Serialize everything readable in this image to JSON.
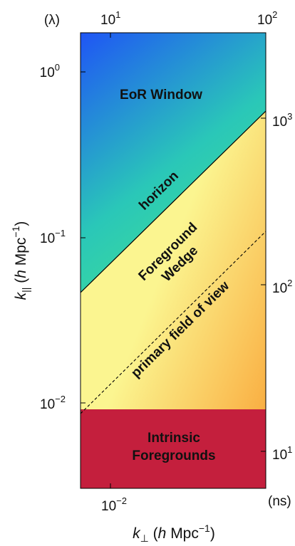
{
  "chart_data": {
    "type": "diagram",
    "x_axis": {
      "label": {
        "main": "k",
        "sub": "⊥",
        "rest": " (",
        "h": "h",
        "unit": " Mpc",
        "sup": "−1",
        "close": ")"
      },
      "scale": "log",
      "ticks": [
        {
          "base": "10",
          "exp": "−2",
          "value": 0.01
        }
      ]
    },
    "y_axis": {
      "label": {
        "main": "k",
        "sub": "||",
        "rest": " (",
        "h": "h",
        "unit": " Mpc",
        "sup": "−1",
        "close": ")"
      },
      "scale": "log",
      "ticks": [
        {
          "base": "10",
          "exp": "0",
          "value": 1
        },
        {
          "base": "10",
          "exp": "−1",
          "value": 0.1
        },
        {
          "base": "10",
          "exp": "−2",
          "value": 0.01
        }
      ]
    },
    "top_axis": {
      "unit_label": "(λ)",
      "ticks": [
        {
          "base": "10",
          "exp": "1",
          "value": 10
        },
        {
          "base": "10",
          "exp": "2",
          "value": 100
        }
      ]
    },
    "right_axis": {
      "unit_label": "(ns)",
      "ticks": [
        {
          "base": "10",
          "exp": "3",
          "value": 1000
        },
        {
          "base": "10",
          "exp": "2",
          "value": 100
        },
        {
          "base": "10",
          "exp": "1",
          "value": 10
        }
      ]
    },
    "regions": {
      "eor_window": "EoR Window",
      "horizon": "horizon",
      "foreground_wedge": [
        "Foreground",
        "Wedge"
      ],
      "primary_fov": "primary field of view",
      "intrinsic_foregrounds": [
        "Intrinsic",
        "Foregrounds"
      ]
    },
    "colors": {
      "eor_top": "#1f55f5",
      "eor_mid": "#2ac7b8",
      "eor_low": "#3fdf96",
      "wedge_yellow": "#fbf590",
      "wedge_orange": "#f9a93c",
      "intrinsic": "#c41f3d",
      "line": "#000000"
    }
  }
}
